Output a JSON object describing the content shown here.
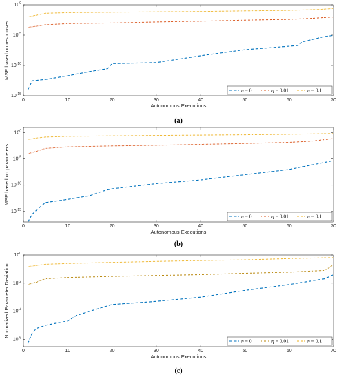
{
  "colors": {
    "eta_0": "#0072BD",
    "eta_001": "#D95319",
    "eta_01": "#EDB120",
    "eta_001_panel_c": "#B8860B",
    "axis": "#262626"
  },
  "chart_data": [
    {
      "type": "line",
      "panel_label": "(a)",
      "xlabel": "Autonomous Executions",
      "ylabel": "MSE based on responses",
      "yscale": "log",
      "xlim": [
        0,
        70
      ],
      "ylim": [
        1e-15,
        1
      ],
      "xticks": [
        "0",
        "10",
        "20",
        "30",
        "40",
        "50",
        "60",
        "70"
      ],
      "yticks": [
        {
          "base": "10",
          "exp": "0",
          "value": 1
        },
        {
          "base": "10",
          "exp": "-5",
          "value": 1e-05
        },
        {
          "base": "10",
          "exp": "-10",
          "value": 1e-10
        },
        {
          "base": "10",
          "exp": "-15",
          "value": 1e-15
        }
      ],
      "grid": false,
      "legend": {
        "placement": "bottom-right",
        "orientation": "horizontal"
      },
      "series": [
        {
          "name": "η = 0",
          "name_symbol": "η",
          "name_rest": " = 0",
          "style": "dashed",
          "color_key": "eta_0",
          "x": [
            1,
            2,
            5,
            10,
            15,
            19,
            20,
            30,
            40,
            50,
            57,
            62,
            63,
            68,
            70
          ],
          "y": [
            1e-14,
            3e-13,
            5e-13,
            2e-12,
            1e-11,
            3e-11,
            2e-10,
            3e-10,
            4e-09,
            4e-08,
            1e-07,
            2e-07,
            8e-07,
            6e-06,
            9e-06
          ]
        },
        {
          "name": "η = 0.01",
          "name_symbol": "η",
          "name_rest": " = 0.01",
          "style": "dotted",
          "color_key": "eta_001",
          "x": [
            1,
            3,
            5,
            10,
            20,
            30,
            40,
            50,
            60,
            65,
            70
          ],
          "y": [
            0.0002,
            0.0003,
            0.0005,
            0.0008,
            0.001,
            0.0015,
            0.002,
            0.003,
            0.004,
            0.006,
            0.01
          ]
        },
        {
          "name": "η = 0.1",
          "name_symbol": "η",
          "name_rest": " = 0.1",
          "style": "dotted",
          "color_key": "eta_01",
          "x": [
            1,
            3,
            5,
            10,
            20,
            30,
            40,
            50,
            60,
            67,
            70
          ],
          "y": [
            0.01,
            0.02,
            0.04,
            0.05,
            0.06,
            0.07,
            0.08,
            0.1,
            0.12,
            0.18,
            0.25
          ]
        }
      ]
    },
    {
      "type": "line",
      "panel_label": "(b)",
      "xlabel": "Autonomous Executions",
      "ylabel": "MSE based on parameters",
      "yscale": "log",
      "xlim": [
        0,
        70
      ],
      "ylim": [
        1e-17,
        10
      ],
      "xticks": [
        "0",
        "10",
        "20",
        "30",
        "40",
        "50",
        "60",
        "70"
      ],
      "yticks": [
        {
          "base": "10",
          "exp": "0",
          "value": 1
        },
        {
          "base": "10",
          "exp": "-5",
          "value": 1e-05
        },
        {
          "base": "10",
          "exp": "-10",
          "value": 1e-10
        },
        {
          "base": "10",
          "exp": "-15",
          "value": 1e-15
        }
      ],
      "grid": false,
      "legend": {
        "placement": "bottom-right",
        "orientation": "horizontal"
      },
      "series": [
        {
          "name": "η = 0",
          "name_symbol": "η",
          "name_rest": " = 0",
          "style": "dashed",
          "color_key": "eta_0",
          "x": [
            1,
            2,
            3,
            5,
            10,
            15,
            18,
            20,
            30,
            40,
            50,
            60,
            70
          ],
          "y": [
            1e-17,
            3e-16,
            2e-15,
            5e-14,
            2e-13,
            1e-12,
            8e-12,
            2e-11,
            2e-10,
            1e-09,
            1e-08,
            1e-07,
            5e-06
          ]
        },
        {
          "name": "η = 0.01",
          "name_symbol": "η",
          "name_rest": " = 0.01",
          "style": "dotted",
          "color_key": "eta_001",
          "x": [
            1,
            3,
            5,
            10,
            20,
            30,
            40,
            50,
            60,
            65,
            70
          ],
          "y": [
            0.0001,
            0.0003,
            0.001,
            0.002,
            0.003,
            0.004,
            0.006,
            0.009,
            0.015,
            0.025,
            0.08
          ]
        },
        {
          "name": "η = 0.1",
          "name_symbol": "η",
          "name_rest": " = 0.1",
          "style": "dotted",
          "color_key": "eta_01",
          "x": [
            1,
            3,
            5,
            10,
            20,
            30,
            40,
            50,
            60,
            70
          ],
          "y": [
            0.05,
            0.1,
            0.15,
            0.2,
            0.25,
            0.3,
            0.35,
            0.4,
            0.5,
            0.7
          ]
        }
      ]
    },
    {
      "type": "line",
      "panel_label": "(c)",
      "xlabel": "Autonomous Executions",
      "ylabel": "Normalized Parameter Deviation",
      "yscale": "log",
      "xlim": [
        0,
        70
      ],
      "ylim": [
        3e-07,
        1
      ],
      "xticks": [
        "0",
        "10",
        "20",
        "30",
        "40",
        "50",
        "60",
        "70"
      ],
      "yticks": [
        {
          "base": "10",
          "exp": "0",
          "value": 1
        },
        {
          "base": "10",
          "exp": "-2",
          "value": 0.01
        },
        {
          "base": "10",
          "exp": "-4",
          "value": 0.0001
        },
        {
          "base": "10",
          "exp": "-6",
          "value": 1e-06
        }
      ],
      "grid": false,
      "legend": {
        "placement": "bottom-right",
        "orientation": "horizontal"
      },
      "series": [
        {
          "name": "η = 0",
          "name_symbol": "η",
          "name_rest": " = 0",
          "style": "dashed",
          "color_key": "eta_0",
          "x": [
            1,
            2,
            3,
            5,
            10,
            12,
            15,
            20,
            30,
            40,
            50,
            60,
            68,
            70
          ],
          "y": [
            5e-07,
            3e-06,
            6e-06,
            1e-05,
            2e-05,
            5e-05,
            0.0001,
            0.0003,
            0.0005,
            0.001,
            0.003,
            0.008,
            0.02,
            0.04
          ]
        },
        {
          "name": "η = 0.01",
          "name_symbol": "η",
          "name_rest": " = 0.01",
          "style": "dotted",
          "color_key": "eta_001_panel_c",
          "x": [
            1,
            3,
            5,
            10,
            20,
            30,
            40,
            50,
            60,
            68,
            70
          ],
          "y": [
            0.008,
            0.012,
            0.02,
            0.025,
            0.03,
            0.035,
            0.04,
            0.05,
            0.06,
            0.08,
            0.2
          ]
        },
        {
          "name": "η = 0.1",
          "name_symbol": "η",
          "name_rest": " = 0.1",
          "style": "dotted",
          "color_key": "eta_01",
          "x": [
            1,
            3,
            5,
            10,
            20,
            30,
            40,
            50,
            60,
            70
          ],
          "y": [
            0.15,
            0.18,
            0.22,
            0.25,
            0.3,
            0.35,
            0.4,
            0.45,
            0.55,
            0.65
          ]
        }
      ]
    }
  ]
}
